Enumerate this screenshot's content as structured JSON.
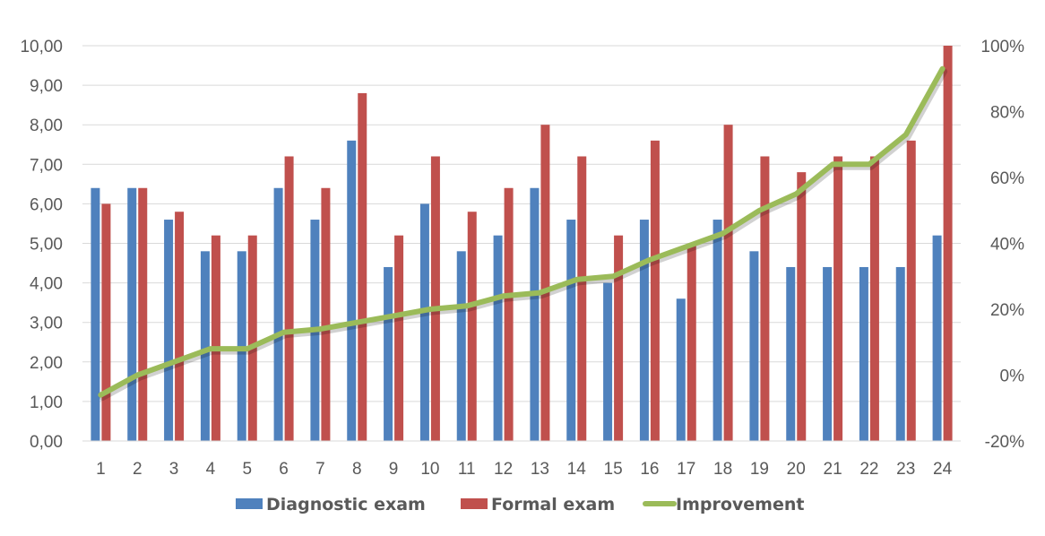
{
  "chart_data": {
    "type": "bar",
    "categories": [
      "1",
      "2",
      "3",
      "4",
      "5",
      "6",
      "7",
      "8",
      "9",
      "10",
      "11",
      "12",
      "13",
      "14",
      "15",
      "16",
      "17",
      "18",
      "19",
      "20",
      "21",
      "22",
      "23",
      "24"
    ],
    "series": [
      {
        "name": "Diagnostic exam",
        "type": "bar",
        "axis": "left",
        "color": "#4F81BD",
        "values": [
          6.4,
          6.4,
          5.6,
          4.8,
          4.8,
          6.4,
          5.6,
          7.6,
          4.4,
          6.0,
          4.8,
          5.2,
          6.4,
          5.6,
          4.0,
          5.6,
          3.6,
          5.6,
          4.8,
          4.4,
          4.4,
          4.4,
          4.4,
          5.2
        ]
      },
      {
        "name": "Formal exam",
        "type": "bar",
        "axis": "left",
        "color": "#C0504D",
        "values": [
          6.0,
          6.4,
          5.8,
          5.2,
          5.2,
          7.2,
          6.4,
          8.8,
          5.2,
          7.2,
          5.8,
          6.4,
          8.0,
          7.2,
          5.2,
          7.6,
          5.0,
          8.0,
          7.2,
          6.8,
          7.2,
          7.2,
          7.6,
          10.0
        ]
      },
      {
        "name": "Improvement",
        "type": "line",
        "axis": "right",
        "color": "#9BBB59",
        "values": [
          -6,
          0,
          4,
          8,
          8,
          13,
          14,
          16,
          18,
          20,
          21,
          24,
          25,
          29,
          30,
          35,
          39,
          43,
          50,
          55,
          64,
          64,
          73,
          93
        ]
      }
    ],
    "y_left": {
      "min": 0,
      "max": 10,
      "step": 1,
      "tick_labels": [
        "0,00",
        "1,00",
        "2,00",
        "3,00",
        "4,00",
        "5,00",
        "6,00",
        "7,00",
        "8,00",
        "9,00",
        "10,00"
      ]
    },
    "y_right": {
      "min": -20,
      "max": 100,
      "step": 20,
      "tick_labels": [
        "-20%",
        "0%",
        "20%",
        "40%",
        "60%",
        "80%",
        "100%"
      ]
    },
    "grid": true,
    "legend_position": "bottom",
    "title": "",
    "xlabel": "",
    "ylabel": ""
  }
}
